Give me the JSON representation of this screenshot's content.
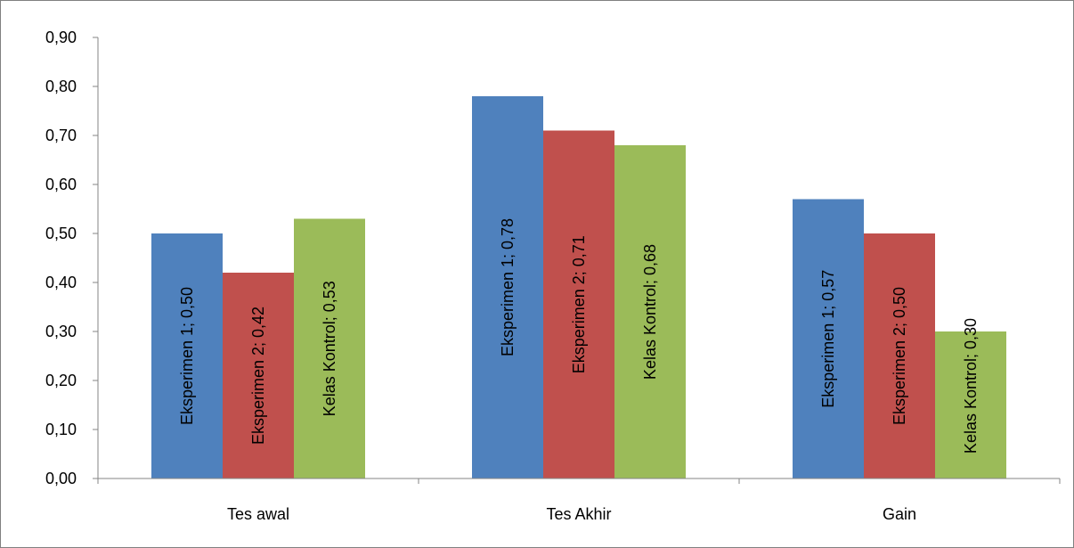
{
  "chart_data": {
    "type": "bar",
    "title": "",
    "xlabel": "",
    "ylabel": "",
    "categories": [
      "Tes awal",
      "Tes Akhir",
      "Gain"
    ],
    "series": [
      {
        "name": "Eksperimen 1",
        "color": "#4F81BD",
        "values": [
          0.5,
          0.78,
          0.57
        ],
        "labels": [
          "Eksperimen 1; 0,50",
          "Eksperimen 1; 0,78",
          "Eksperimen 1; 0,57"
        ]
      },
      {
        "name": "Eksperimen 2",
        "color": "#C0504D",
        "values": [
          0.42,
          0.71,
          0.5
        ],
        "labels": [
          "Eksperimen 2; 0,42",
          "Eksperimen 2; 0,71",
          "Eksperimen 2; 0,50"
        ]
      },
      {
        "name": "Kelas Kontrol",
        "color": "#9BBB59",
        "values": [
          0.53,
          0.68,
          0.3
        ],
        "labels": [
          "Kelas Kontrol; 0,53",
          "Kelas Kontrol; 0,68",
          "Kelas Kontrol; 0,30"
        ]
      }
    ],
    "ylim": [
      0,
      0.9
    ],
    "yticks": [
      "0,00",
      "0,10",
      "0,20",
      "0,30",
      "0,40",
      "0,50",
      "0,60",
      "0,70",
      "0,80",
      "0,90"
    ],
    "grid": false,
    "legend": "none"
  }
}
